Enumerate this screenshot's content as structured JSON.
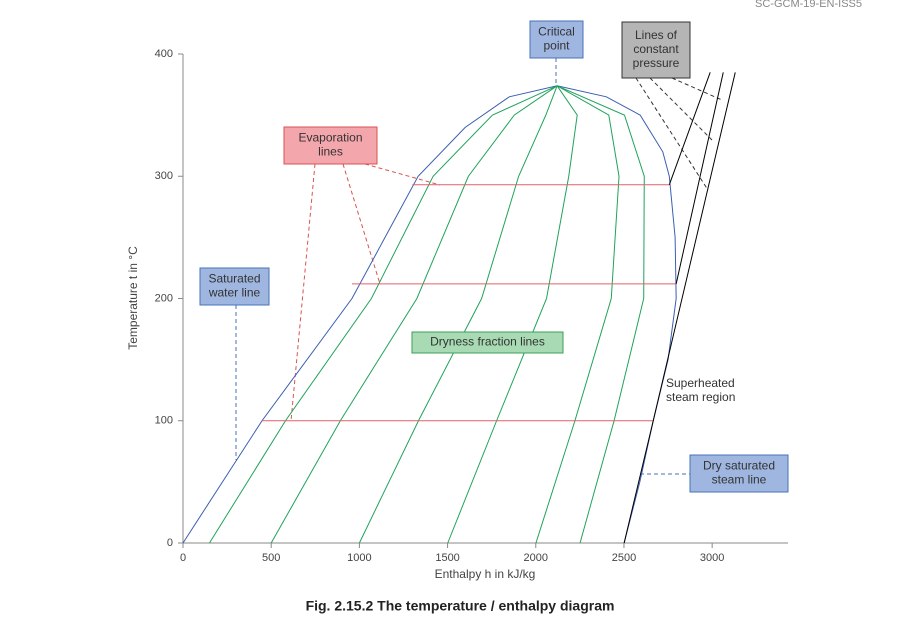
{
  "doc_code": "SC-GCM-19-EN-ISS5",
  "caption": "Fig. 2.15.2 The temperature / enthalpy diagram",
  "chart_data": {
    "type": "line",
    "xlabel": "Enthalpy h in kJ/kg",
    "ylabel": "Temperature t in °C",
    "xlim": [
      0,
      3430
    ],
    "ylim": [
      0,
      400
    ],
    "xticks": [
      0,
      500,
      1000,
      1500,
      2000,
      2500,
      3000
    ],
    "yticks": [
      0,
      100,
      200,
      300,
      400
    ],
    "annotations": {
      "critical_point": [
        "Critical",
        "point"
      ],
      "constant_pressure": [
        "Lines of",
        "constant",
        "pressure"
      ],
      "evaporation": [
        "Evaporation",
        "lines"
      ],
      "saturated_water": [
        "Saturated",
        "water line"
      ],
      "dryness": [
        "Dryness fraction lines"
      ],
      "superheated": [
        "Superheated",
        "steam region"
      ],
      "dry_saturated": [
        "Dry saturated",
        "steam line"
      ]
    },
    "series": [
      {
        "color": "#3a5fb0",
        "x": [
          0,
          448,
          958,
          1333,
          1600,
          1850,
          2121,
          2400,
          2592,
          2720,
          2757,
          2790,
          2796,
          2750,
          2666,
          2590,
          2501
        ],
        "values": [
          0,
          100,
          200,
          300,
          340,
          365,
          374,
          365,
          350,
          320,
          300,
          250,
          200,
          150,
          100,
          50,
          0
        ]
      },
      {
        "color": "#1fa35a",
        "x": [
          150,
          581,
          1068,
          1418,
          1754,
          2121
        ],
        "values": [
          0,
          100,
          200,
          300,
          350,
          374
        ]
      },
      {
        "color": "#1fa35a",
        "x": [
          500,
          892,
          1326,
          1618,
          1878,
          2121
        ],
        "values": [
          0,
          100,
          200,
          300,
          350,
          374
        ]
      },
      {
        "color": "#1fa35a",
        "x": [
          1000,
          1335,
          1693,
          1903,
          2057,
          2121
        ],
        "values": [
          0,
          100,
          200,
          300,
          350,
          374
        ]
      },
      {
        "color": "#1fa35a",
        "x": [
          1501,
          1778,
          2061,
          2187,
          2235,
          2121
        ],
        "values": [
          0,
          100,
          200,
          300,
          350,
          374
        ]
      },
      {
        "color": "#1fa35a",
        "x": [
          2001,
          2222,
          2428,
          2472,
          2414,
          2121
        ],
        "values": [
          0,
          100,
          200,
          300,
          350,
          374
        ]
      },
      {
        "color": "#1fa35a",
        "x": [
          2251,
          2444,
          2612,
          2615,
          2503,
          2121
        ],
        "values": [
          0,
          100,
          200,
          300,
          350,
          374
        ]
      },
      {
        "color": "#e0606a",
        "x": [
          448,
          2666
        ],
        "values": [
          100,
          100
        ]
      },
      {
        "color": "#e0606a",
        "x": [
          958,
          2796
        ],
        "values": [
          212,
          212
        ]
      },
      {
        "color": "#e0606a",
        "x": [
          1300,
          2757
        ],
        "values": [
          293,
          293
        ]
      },
      {
        "color": "#000000",
        "x": [
          2757,
          2989
        ],
        "values": [
          293,
          385
        ]
      },
      {
        "color": "#000000",
        "x": [
          2796,
          3063
        ],
        "values": [
          212,
          385
        ]
      },
      {
        "color": "#000000",
        "x": [
          2501,
          2666,
          3131
        ],
        "values": [
          0,
          100,
          385
        ]
      }
    ]
  }
}
